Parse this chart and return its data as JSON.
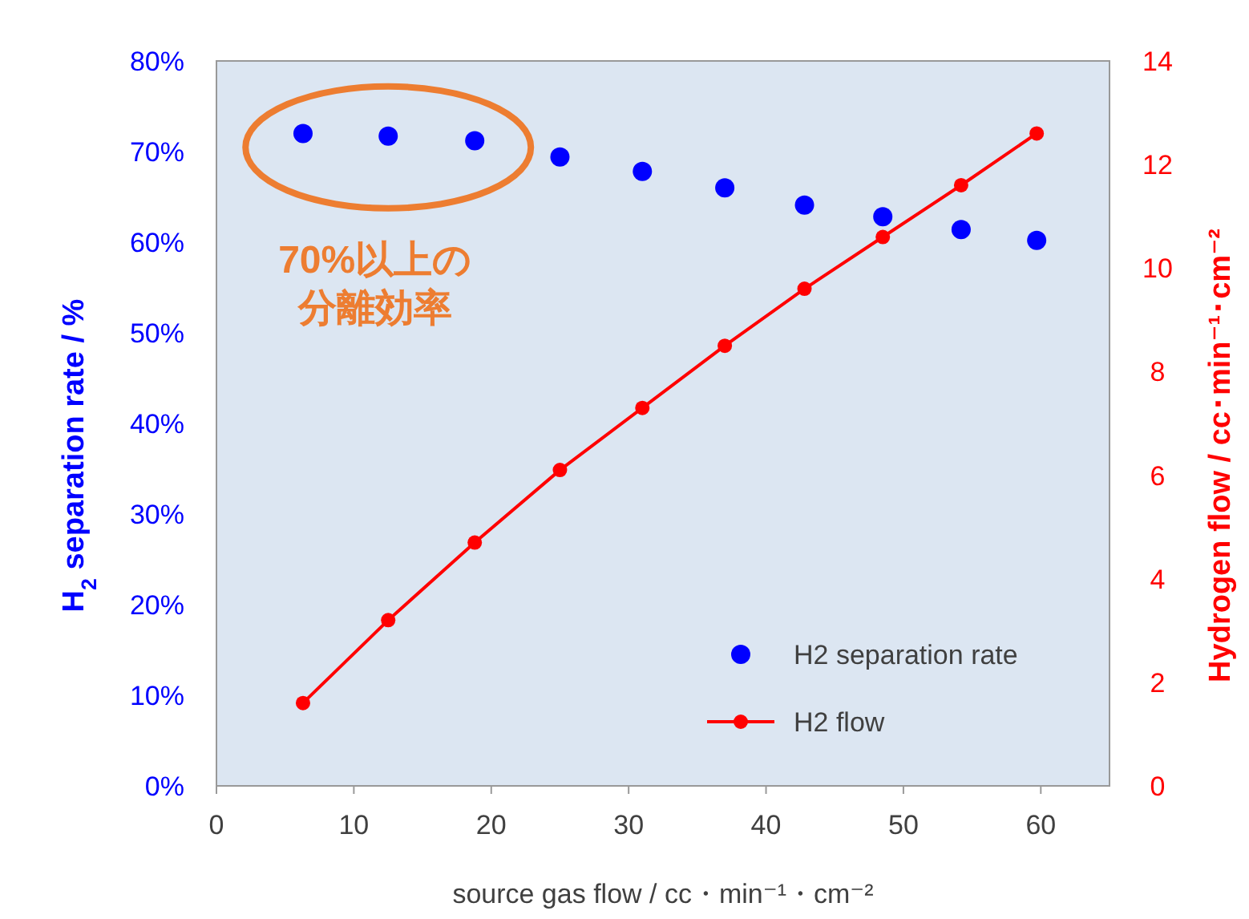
{
  "chart_data": {
    "type": "scatter",
    "xlabel": "source gas flow / cc・min⁻¹・cm⁻²",
    "ylabel": "H$_{2}$ separation rate / %",
    "y2label": "Hydrogen flow / cc･min⁻¹･cm⁻²",
    "xlim": [
      0,
      65
    ],
    "xticks": [
      0,
      10,
      20,
      30,
      40,
      50,
      60
    ],
    "ylim": [
      0,
      80
    ],
    "yticks": [
      {
        "value": 0,
        "label": "0%"
      },
      {
        "value": 10,
        "label": "10%"
      },
      {
        "value": 20,
        "label": "20%"
      },
      {
        "value": 30,
        "label": "30%"
      },
      {
        "value": 40,
        "label": "40%"
      },
      {
        "value": 50,
        "label": "50%"
      },
      {
        "value": 60,
        "label": "60%"
      },
      {
        "value": 70,
        "label": "70%"
      },
      {
        "value": 80,
        "label": "80%"
      }
    ],
    "y2lim": [
      0,
      14
    ],
    "y2ticks": [
      0,
      2,
      4,
      6,
      8,
      10,
      12,
      14
    ],
    "grid": false,
    "legend": "bottom right",
    "marker": "circle",
    "series": [
      {
        "name": "H2 separation rate",
        "color": "#0000ff",
        "x": [
          6.3,
          12.5,
          18.8,
          25,
          31,
          37,
          42.8,
          48.5,
          54.2,
          59.7
        ],
        "values": [
          72.0,
          71.7,
          71.2,
          69.4,
          67.8,
          66.0,
          64.1,
          62.8,
          61.4,
          60.2
        ]
      },
      {
        "name": "H2 flow",
        "type": "line",
        "axis": "y2",
        "color": "#ff0000",
        "x": [
          6.3,
          12.5,
          18.8,
          25,
          31,
          37,
          42.8,
          48.5,
          54.2,
          59.7
        ],
        "values": [
          1.6,
          3.2,
          4.7,
          6.1,
          7.3,
          8.5,
          9.6,
          10.6,
          11.6,
          12.6
        ]
      }
    ],
    "annotations": [
      "70%以上の",
      "分離効率"
    ]
  }
}
